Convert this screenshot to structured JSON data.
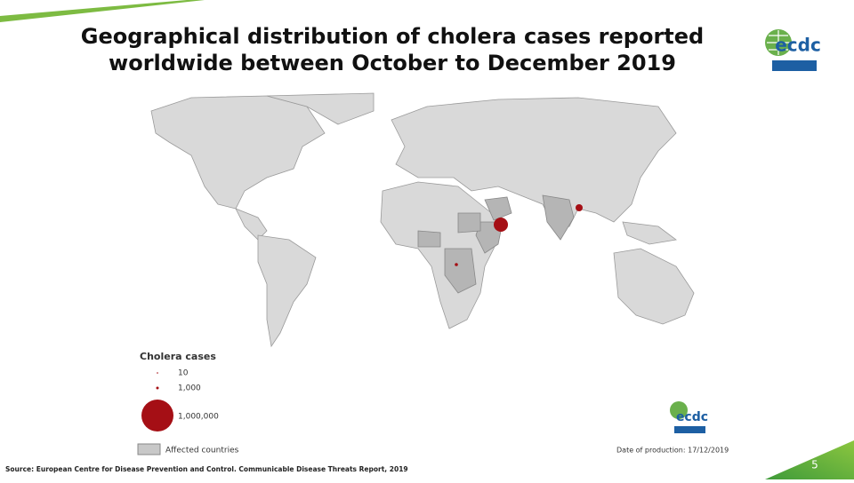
{
  "header": {
    "title_line1": "Geographical distribution of cholera cases reported",
    "title_line2": "worldwide between October to December 2019",
    "logo_text": "ecdc"
  },
  "legend": {
    "title": "Cholera cases",
    "sizes": [
      "10",
      "1,000",
      "1,000,000"
    ],
    "affected": "Affected countries"
  },
  "map": {
    "production_date": "Date of production: 17/12/2019",
    "logo_text": "ecdc"
  },
  "footer": {
    "source": "Source: European Centre for Disease Prevention and Control. Communicable Disease Threats Report, 2019",
    "page": "5"
  }
}
